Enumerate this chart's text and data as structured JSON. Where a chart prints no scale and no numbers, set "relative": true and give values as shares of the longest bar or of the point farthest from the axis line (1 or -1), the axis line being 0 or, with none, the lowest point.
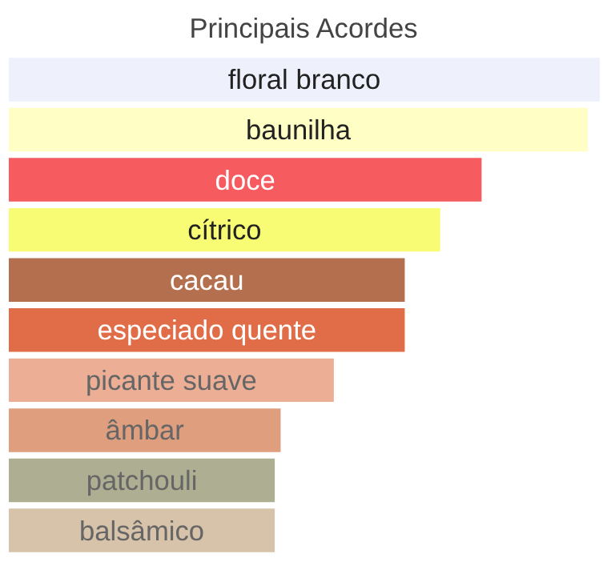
{
  "chart_data": {
    "type": "bar",
    "orientation": "horizontal",
    "relative": true,
    "title": "Principais Acordes",
    "categories": [
      "floral branco",
      "baunilha",
      "doce",
      "cítrico",
      "cacau",
      "especiado quente",
      "picante suave",
      "âmbar",
      "patchouli",
      "balsâmico"
    ],
    "values": [
      1,
      0.98,
      0.8,
      0.73,
      0.67,
      0.67,
      0.55,
      0.46,
      0.45,
      0.45
    ],
    "colors": [
      "#eef1fb",
      "#fefec5",
      "#f55b5f",
      "#f8fc74",
      "#b4704e",
      "#e06c48",
      "#ecae95",
      "#df9f7e",
      "#aeae92",
      "#d7c2aa"
    ]
  }
}
